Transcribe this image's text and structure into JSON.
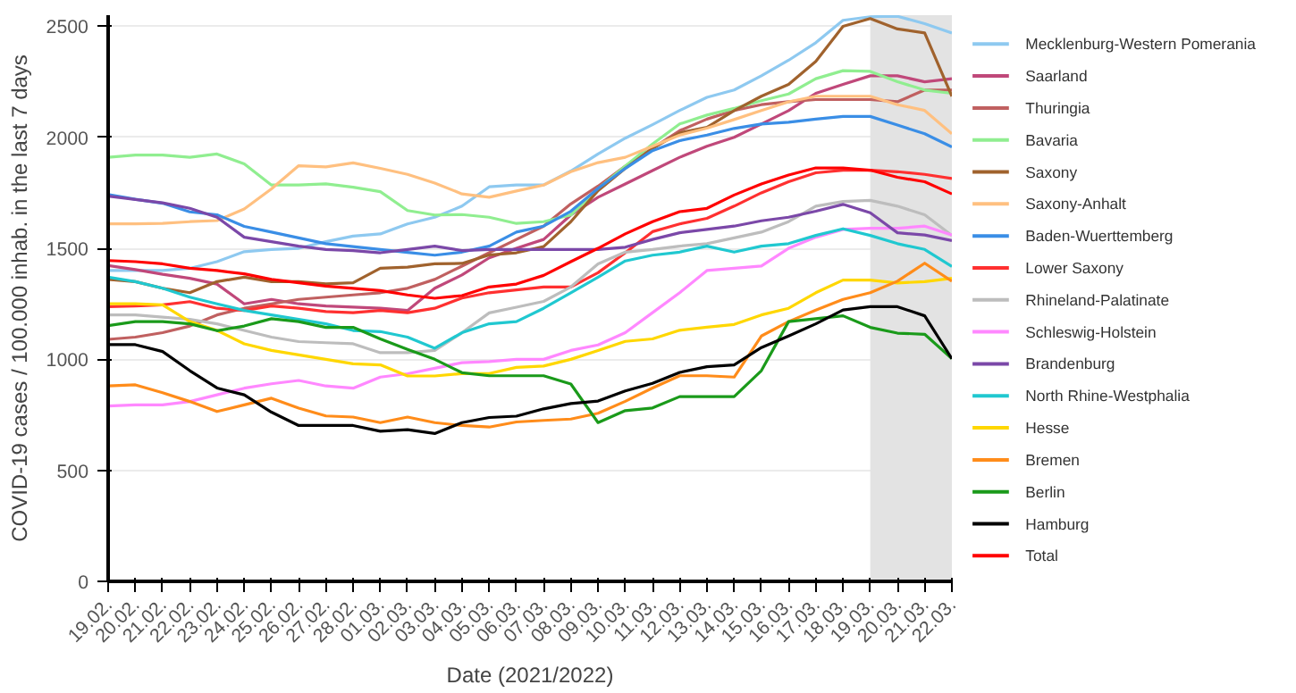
{
  "chart_data": {
    "type": "line",
    "xlabel": "Date (2021/2022)",
    "ylabel": "COVID-19 cases / 100.000 inhab. in the last 7 days",
    "categories": [
      "19.02.",
      "20.02.",
      "21.02.",
      "22.02.",
      "23.02.",
      "24.02.",
      "25.02.",
      "26.02.",
      "27.02.",
      "28.02.",
      "01.03.",
      "02.03.",
      "03.03.",
      "04.03.",
      "05.03.",
      "06.03.",
      "07.03.",
      "08.03.",
      "09.03.",
      "10.03.",
      "11.03.",
      "12.03.",
      "13.03.",
      "14.03.",
      "15.03.",
      "16.03.",
      "17.03.",
      "18.03.",
      "19.03.",
      "20.03.",
      "21.03.",
      "22.03."
    ],
    "ylim": [
      0,
      2550
    ],
    "yticks": [
      0,
      500,
      1000,
      1500,
      2000,
      2500
    ],
    "grid": "y",
    "legend": "right",
    "bands": [
      {
        "axis": "x",
        "from": "19.03.",
        "to": "22.03.",
        "color": "#e3e3e3"
      }
    ],
    "series": [
      {
        "name": "Mecklenburg-Western Pomerania",
        "color": "#8ec9f0",
        "values": [
          1400,
          1400,
          1400,
          1410,
          1440,
          1485,
          1495,
          1500,
          1530,
          1555,
          1565,
          1610,
          1640,
          1690,
          1777,
          1785,
          1785,
          1848,
          1925,
          1996,
          2057,
          2121,
          2180,
          2213,
          2277,
          2347,
          2426,
          2527,
          2543,
          2545,
          2512,
          2470
        ]
      },
      {
        "name": "Saarland",
        "color": "#c0487a",
        "values": [
          1422,
          1404,
          1383,
          1365,
          1339,
          1250,
          1270,
          1250,
          1240,
          1235,
          1230,
          1220,
          1320,
          1380,
          1457,
          1500,
          1540,
          1650,
          1730,
          1790,
          1850,
          1910,
          1960,
          2000,
          2060,
          2120,
          2198,
          2238,
          2277,
          2277,
          2250,
          2264
        ]
      },
      {
        "name": "Thuringia",
        "color": "#c06060",
        "values": [
          1090,
          1100,
          1120,
          1150,
          1200,
          1230,
          1250,
          1270,
          1280,
          1290,
          1300,
          1320,
          1360,
          1420,
          1480,
          1540,
          1600,
          1700,
          1780,
          1870,
          1950,
          2030,
          2082,
          2121,
          2147,
          2160,
          2170,
          2170,
          2170,
          2160,
          2213,
          2213
        ]
      },
      {
        "name": "Bavaria",
        "color": "#90ee90",
        "values": [
          1910,
          1920,
          1920,
          1910,
          1925,
          1880,
          1785,
          1785,
          1790,
          1775,
          1755,
          1670,
          1650,
          1652,
          1640,
          1612,
          1620,
          1650,
          1768,
          1870,
          1970,
          2060,
          2100,
          2130,
          2165,
          2195,
          2264,
          2300,
          2297,
          2250,
          2213,
          2198
        ]
      },
      {
        "name": "Saxony",
        "color": "#a0622d",
        "values": [
          1360,
          1350,
          1320,
          1300,
          1350,
          1370,
          1350,
          1350,
          1340,
          1345,
          1410,
          1415,
          1430,
          1432,
          1470,
          1480,
          1508,
          1620,
          1760,
          1860,
          1950,
          2020,
          2045,
          2120,
          2185,
          2238,
          2342,
          2500,
          2535,
          2488,
          2470,
          2185
        ]
      },
      {
        "name": "Saxony-Anhalt",
        "color": "#ffc080",
        "values": [
          1610,
          1610,
          1612,
          1620,
          1625,
          1677,
          1768,
          1872,
          1867,
          1885,
          1860,
          1833,
          1794,
          1745,
          1730,
          1758,
          1785,
          1845,
          1886,
          1910,
          1960,
          2010,
          2041,
          2080,
          2121,
          2160,
          2185,
          2185,
          2185,
          2147,
          2121,
          2016
        ]
      },
      {
        "name": "Baden-Wuerttemberg",
        "color": "#3a8ee6",
        "values": [
          1742,
          1721,
          1703,
          1664,
          1651,
          1599,
          1573,
          1547,
          1521,
          1508,
          1495,
          1482,
          1469,
          1483,
          1510,
          1573,
          1600,
          1667,
          1770,
          1860,
          1940,
          1985,
          2010,
          2040,
          2060,
          2068,
          2082,
          2094,
          2094,
          2055,
          2016,
          1957
        ]
      },
      {
        "name": "Lower Saxony",
        "color": "#ff3030",
        "values": [
          1237,
          1240,
          1245,
          1260,
          1230,
          1220,
          1240,
          1230,
          1215,
          1210,
          1220,
          1210,
          1230,
          1276,
          1300,
          1313,
          1326,
          1326,
          1390,
          1480,
          1575,
          1610,
          1635,
          1690,
          1750,
          1800,
          1840,
          1852,
          1852,
          1845,
          1833,
          1814
        ]
      },
      {
        "name": "Rhineland-Palatinate",
        "color": "#bdbdbd",
        "values": [
          1200,
          1200,
          1190,
          1180,
          1160,
          1130,
          1100,
          1080,
          1075,
          1070,
          1030,
          1030,
          1040,
          1120,
          1209,
          1235,
          1261,
          1326,
          1430,
          1483,
          1495,
          1510,
          1521,
          1547,
          1573,
          1620,
          1690,
          1711,
          1716,
          1690,
          1651,
          1558
        ]
      },
      {
        "name": "Schleswig-Holstein",
        "color": "#ff88ff",
        "values": [
          790,
          795,
          795,
          810,
          840,
          870,
          890,
          905,
          880,
          870,
          920,
          935,
          960,
          985,
          990,
          1000,
          1000,
          1040,
          1065,
          1120,
          1210,
          1300,
          1400,
          1410,
          1420,
          1500,
          1550,
          1585,
          1590,
          1590,
          1600,
          1560
        ]
      },
      {
        "name": "Brandenburg",
        "color": "#7b48a8",
        "values": [
          1735,
          1720,
          1705,
          1680,
          1640,
          1550,
          1530,
          1510,
          1495,
          1490,
          1480,
          1495,
          1510,
          1490,
          1495,
          1495,
          1495,
          1495,
          1495,
          1505,
          1540,
          1570,
          1585,
          1600,
          1624,
          1640,
          1667,
          1698,
          1660,
          1570,
          1560,
          1535
        ]
      },
      {
        "name": "North Rhine-Westphalia",
        "color": "#20c8d0",
        "values": [
          1370,
          1350,
          1320,
          1280,
          1250,
          1220,
          1200,
          1180,
          1160,
          1130,
          1125,
          1100,
          1050,
          1120,
          1160,
          1170,
          1230,
          1300,
          1370,
          1443,
          1469,
          1483,
          1510,
          1483,
          1510,
          1521,
          1558,
          1588,
          1558,
          1521,
          1495,
          1418
        ]
      },
      {
        "name": "Hesse",
        "color": "#ffd700",
        "values": [
          1250,
          1250,
          1245,
          1170,
          1130,
          1070,
          1040,
          1020,
          1000,
          980,
          975,
          925,
          925,
          936,
          936,
          964,
          970,
          1000,
          1040,
          1081,
          1092,
          1131,
          1145,
          1157,
          1200,
          1230,
          1300,
          1357,
          1357,
          1344,
          1350,
          1365
        ]
      },
      {
        "name": "Bremen",
        "color": "#ff8c1a",
        "values": [
          880,
          885,
          850,
          810,
          765,
          795,
          825,
          780,
          745,
          740,
          715,
          740,
          715,
          702,
          695,
          718,
          725,
          731,
          757,
          811,
          871,
          926,
          926,
          920,
          1105,
          1170,
          1222,
          1270,
          1300,
          1352,
          1433,
          1352
        ]
      },
      {
        "name": "Berlin",
        "color": "#1a9a1a",
        "values": [
          1152,
          1170,
          1170,
          1160,
          1129,
          1150,
          1183,
          1170,
          1144,
          1144,
          1092,
          1045,
          1000,
          940,
          926,
          926,
          926,
          889,
          715,
          769,
          781,
          832,
          832,
          832,
          949,
          1170,
          1183,
          1196,
          1144,
          1118,
          1113,
          1003
        ]
      },
      {
        "name": "Hamburg",
        "color": "#000000",
        "values": [
          1066,
          1066,
          1035,
          949,
          871,
          840,
          762,
          702,
          702,
          702,
          676,
          683,
          666,
          715,
          738,
          744,
          777,
          801,
          812,
          858,
          892,
          941,
          967,
          975,
          1053,
          1105,
          1160,
          1222,
          1237,
          1237,
          1196,
          1003
        ]
      },
      {
        "name": "Total",
        "color": "#ff0000",
        "values": [
          1445,
          1440,
          1430,
          1410,
          1400,
          1385,
          1360,
          1345,
          1330,
          1320,
          1310,
          1290,
          1275,
          1287,
          1326,
          1339,
          1378,
          1440,
          1500,
          1565,
          1620,
          1665,
          1680,
          1740,
          1790,
          1830,
          1862,
          1862,
          1852,
          1820,
          1800,
          1745
        ]
      }
    ]
  }
}
